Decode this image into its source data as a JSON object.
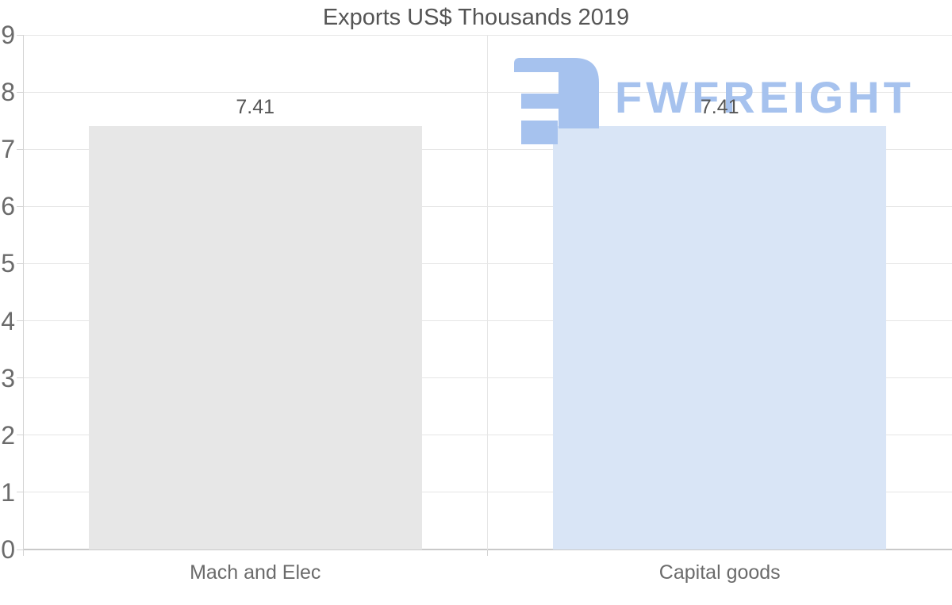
{
  "chart_data": {
    "type": "bar",
    "title": "Exports US$ Thousands 2019",
    "categories": [
      "Mach and Elec",
      "Capital goods"
    ],
    "values": [
      7.41,
      7.41
    ],
    "data_labels": [
      "7.41",
      "7.41"
    ],
    "bar_colors": [
      "#e7e7e7",
      "#d9e5f6"
    ],
    "ylim": [
      0,
      9
    ],
    "yticks": [
      "0",
      "1",
      "2",
      "3",
      "4",
      "5",
      "6",
      "7",
      "8",
      "9"
    ],
    "grid": true,
    "legend": "none",
    "xlabel": "",
    "ylabel": ""
  },
  "watermark": {
    "text": "FWFREIGHT",
    "logo": "fwfreight-logo-mark",
    "color": "#a6c2ee"
  },
  "colors": {
    "background": "#ffffff",
    "title_text": "#555555",
    "axis_text": "#6b6b6b",
    "value_label_text": "#555555",
    "gridline": "#e6e6e6",
    "axis_line": "#c9c9c9",
    "axis_line_light": "#d4d4d4",
    "watermark_blue": "#a6c2ee",
    "bar_gray": "#e7e7e7",
    "bar_blue": "#d9e5f6"
  }
}
